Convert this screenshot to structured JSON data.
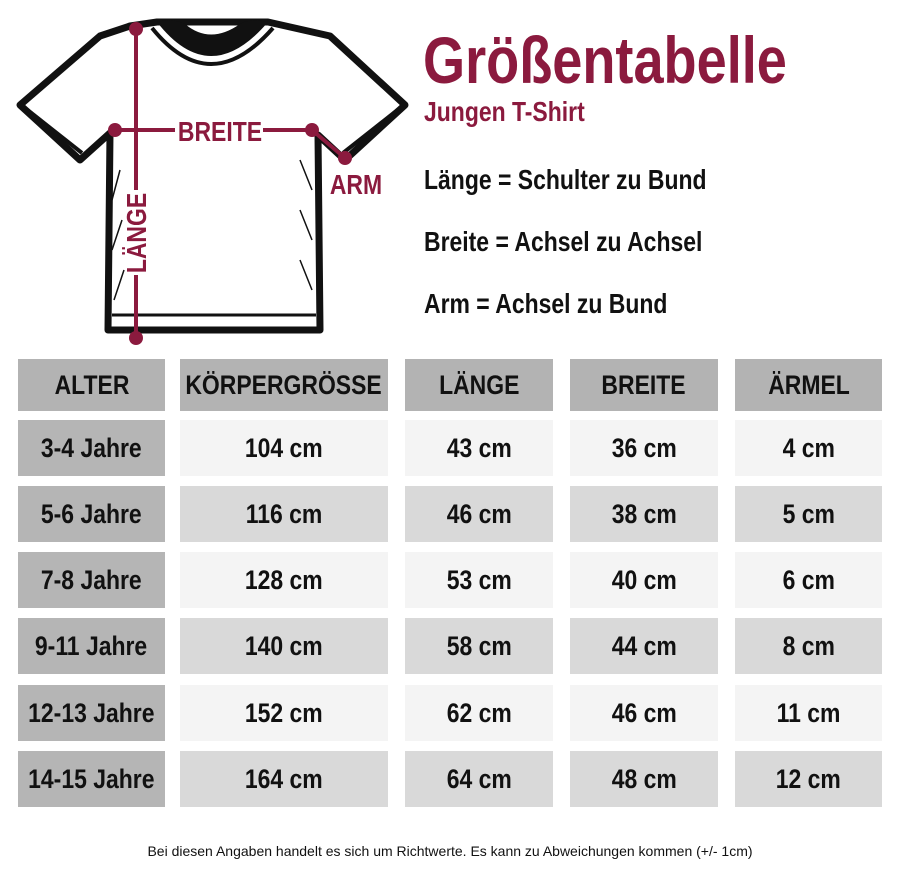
{
  "accent_color": "#8b1a3e",
  "diagram": {
    "breite_label": "BREITE",
    "arm_label": "ARM",
    "laenge_label": "LÄNGE"
  },
  "title": "Größentabelle",
  "subtitle": "Jungen T-Shirt",
  "definitions": [
    "Länge = Schulter zu Bund",
    "Breite = Achsel zu Achsel",
    "Arm = Achsel zu Bund"
  ],
  "table": {
    "headers": [
      "ALTER",
      "KÖRPERGRÖSSE",
      "LÄNGE",
      "BREITE",
      "ÄRMEL"
    ],
    "rows": [
      [
        "3-4 Jahre",
        "104 cm",
        "43 cm",
        "36 cm",
        "4 cm"
      ],
      [
        "5-6 Jahre",
        "116 cm",
        "46 cm",
        "38 cm",
        "5 cm"
      ],
      [
        "7-8 Jahre",
        "128 cm",
        "53 cm",
        "40 cm",
        "6 cm"
      ],
      [
        "9-11 Jahre",
        "140 cm",
        "58 cm",
        "44 cm",
        "8 cm"
      ],
      [
        "12-13 Jahre",
        "152 cm",
        "62 cm",
        "46 cm",
        "11 cm"
      ],
      [
        "14-15 Jahre",
        "164 cm",
        "64 cm",
        "48 cm",
        "12 cm"
      ]
    ]
  },
  "footer": "Bei diesen Angaben handelt es sich um Richtwerte. Es kann zu Abweichungen kommen (+/- 1cm)"
}
